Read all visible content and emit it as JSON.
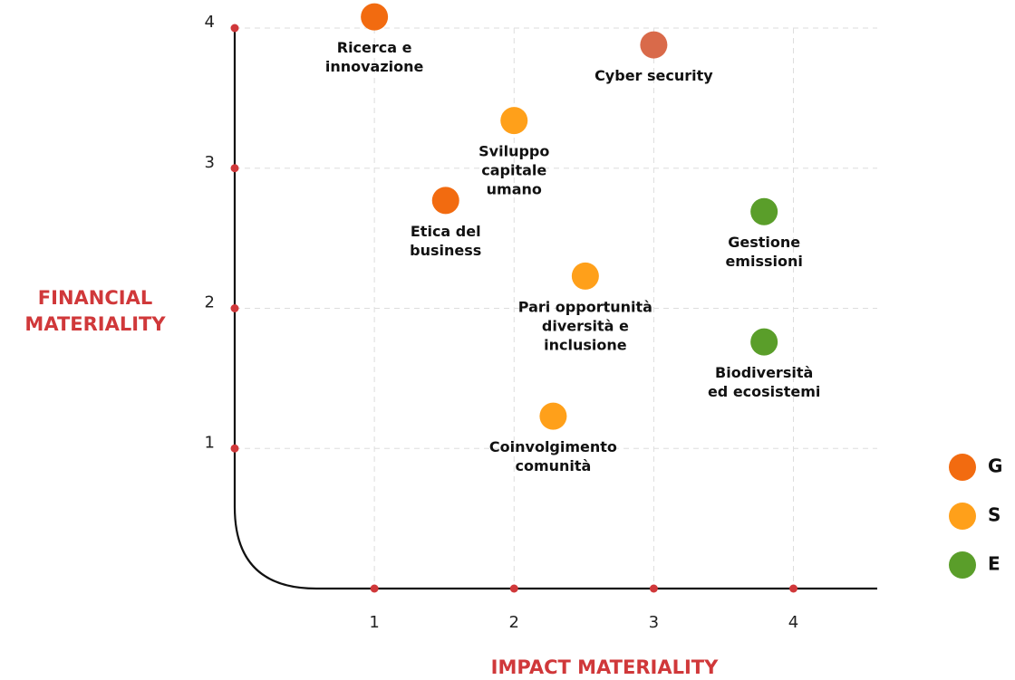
{
  "chart_data": {
    "type": "scatter",
    "x_label": "IMPACT MATERIALITY",
    "y_label": [
      "FINANCIAL",
      "MATERIALITY"
    ],
    "xlim": [
      0,
      4.6
    ],
    "ylim": [
      0,
      4
    ],
    "xticks": [
      1,
      2,
      3,
      4
    ],
    "yticks": [
      1,
      2,
      3,
      4
    ],
    "grid": true,
    "legend_position": "right",
    "legend": [
      {
        "name": "G",
        "color": "#f26b10"
      },
      {
        "name": "S",
        "color": "#ffa01a"
      },
      {
        "name": "E",
        "color": "#5a9e2a"
      }
    ],
    "points": [
      {
        "label": [
          "Ricerca e",
          "innovazione"
        ],
        "x": 1.0,
        "y": 4.08,
        "color": "#f26b10"
      },
      {
        "label": [
          "Cyber security"
        ],
        "x": 3.0,
        "y": 3.88,
        "color": "#d96a4a"
      },
      {
        "label": [
          "Sviluppo",
          "capitale",
          "umano"
        ],
        "x": 2.0,
        "y": 3.34,
        "color": "#ffa01a"
      },
      {
        "label": [
          "Etica del",
          "business"
        ],
        "x": 1.51,
        "y": 2.77,
        "color": "#f26b10"
      },
      {
        "label": [
          "Gestione",
          "emissioni"
        ],
        "x": 3.79,
        "y": 2.69,
        "color": "#5a9e2a"
      },
      {
        "label": [
          "Pari opportunità",
          "diversità e",
          "inclusione"
        ],
        "x": 2.51,
        "y": 2.23,
        "color": "#ffa01a"
      },
      {
        "label": [
          "Biodiversità",
          "ed ecosistemi"
        ],
        "x": 3.79,
        "y": 1.76,
        "color": "#5a9e2a"
      },
      {
        "label": [
          "Coinvolgimento",
          "comunità"
        ],
        "x": 2.28,
        "y": 1.23,
        "color": "#ffa01a"
      }
    ]
  }
}
